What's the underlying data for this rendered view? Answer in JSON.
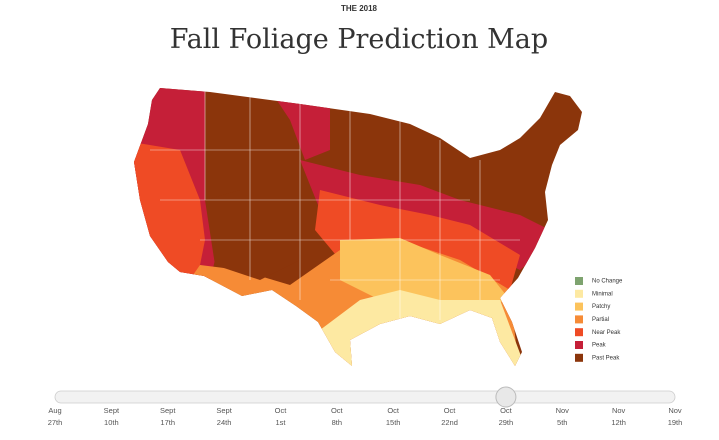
{
  "header": {
    "kicker": "THE 2018",
    "title": "Fall Foliage Prediction Map"
  },
  "legend": [
    {
      "label": "No Change",
      "color": "#7ea36f"
    },
    {
      "label": "Minimal",
      "color": "#fde9a2"
    },
    {
      "label": "Patchy",
      "color": "#fcc35c"
    },
    {
      "label": "Partial",
      "color": "#f68b36"
    },
    {
      "label": "Near Peak",
      "color": "#ef4b25"
    },
    {
      "label": "Peak",
      "color": "#c51f38"
    },
    {
      "label": "Past Peak",
      "color": "#8b350b"
    }
  ],
  "slider": {
    "selected": 8,
    "dates": [
      {
        "month": "Aug",
        "day": "27th"
      },
      {
        "month": "Sept",
        "day": "10th"
      },
      {
        "month": "Sept",
        "day": "17th"
      },
      {
        "month": "Sept",
        "day": "24th"
      },
      {
        "month": "Oct",
        "day": "1st"
      },
      {
        "month": "Oct",
        "day": "8th"
      },
      {
        "month": "Oct",
        "day": "15th"
      },
      {
        "month": "Oct",
        "day": "22nd"
      },
      {
        "month": "Oct",
        "day": "29th"
      },
      {
        "month": "Nov",
        "day": "5th"
      },
      {
        "month": "Nov",
        "day": "12th"
      },
      {
        "month": "Nov",
        "day": "19th"
      }
    ]
  }
}
